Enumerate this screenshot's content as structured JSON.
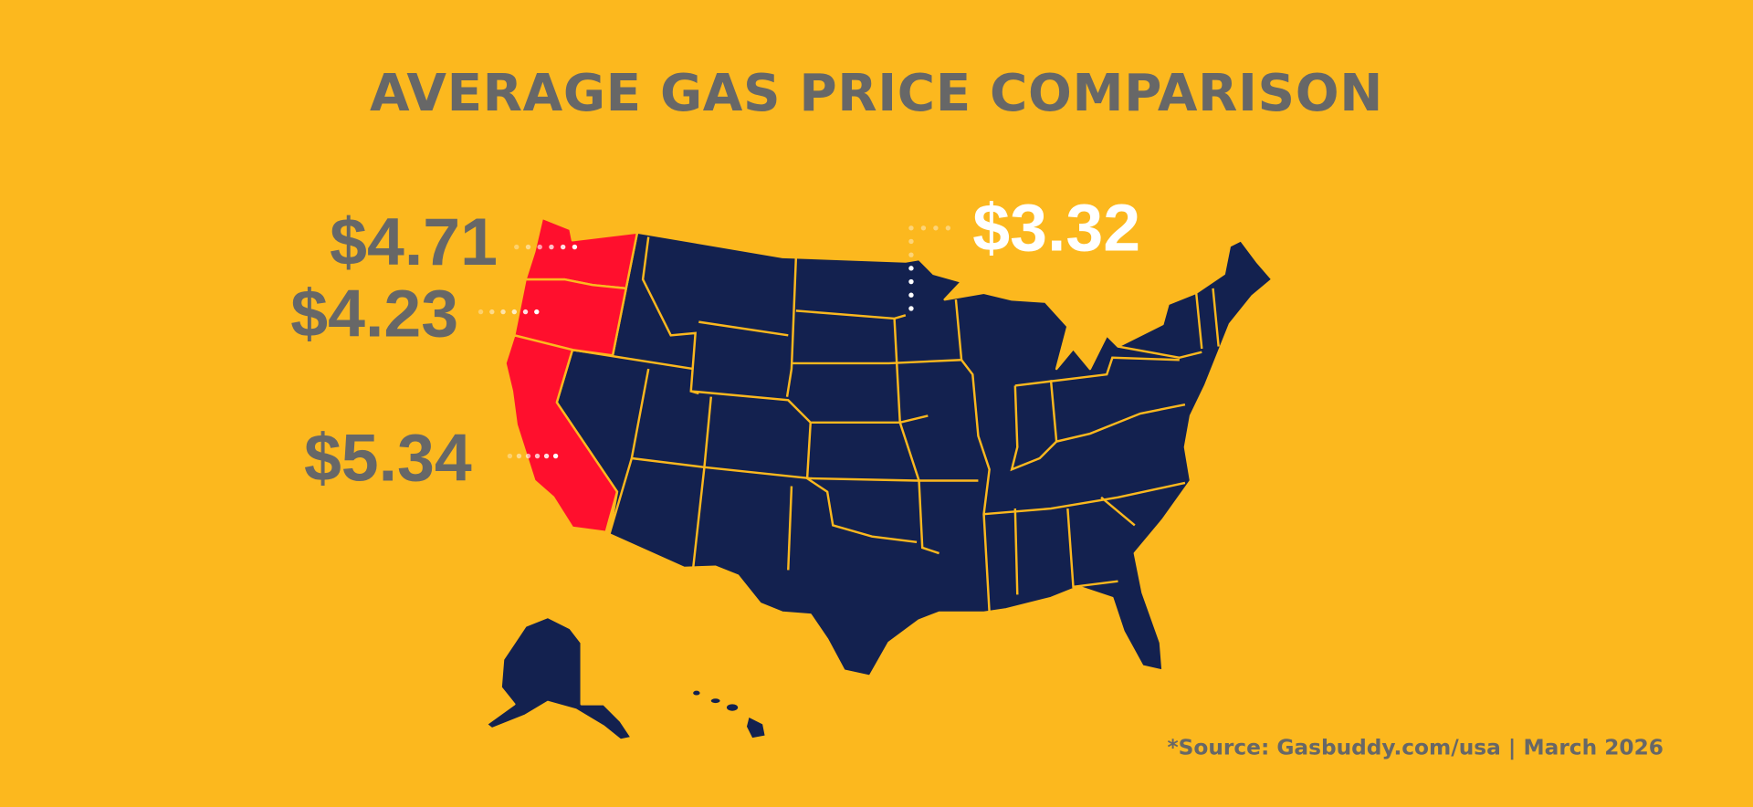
{
  "title": "AVERAGE GAS PRICE COMPARISON",
  "colors": {
    "background": "#FCB81E",
    "highlighted_states": "#FF0F2D",
    "other_states": "#13214F",
    "label_gray": "#676767",
    "label_white": "#FFFFFF"
  },
  "prices": {
    "washington": "$4.71",
    "oregon": "$4.23",
    "california": "$5.34",
    "minnesota": "$3.32"
  },
  "highlighted_states": [
    "Washington",
    "Oregon",
    "California"
  ],
  "source": "*Source: Gasbuddy.com/usa | March 2026"
}
